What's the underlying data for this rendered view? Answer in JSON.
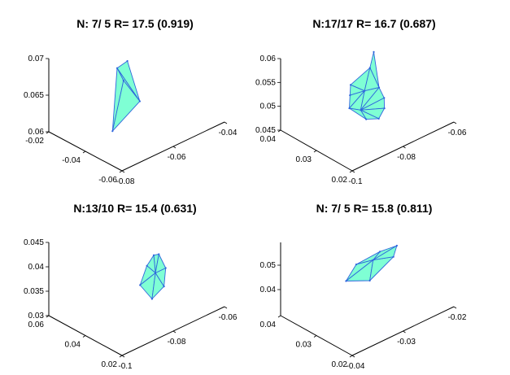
{
  "chart_data": [
    {
      "type": "surface3d",
      "title": "N: 7/ 5 R= 17.5 (0.919)",
      "x_ticks": [
        "-0.04",
        "-0.06",
        "-0.08"
      ],
      "y_ticks": [
        "-0.02",
        "-0.04",
        "-0.06"
      ],
      "z_ticks": [
        "0.07",
        "0.065",
        "0.06"
      ],
      "xlim": [
        -0.09,
        -0.03
      ],
      "ylim": [
        -0.07,
        -0.02
      ],
      "zlim": [
        0.06,
        0.07
      ],
      "vertices": [
        [
          -0.058,
          -0.041,
          0.0688
        ],
        [
          -0.052,
          -0.041,
          0.0685
        ],
        [
          -0.061,
          -0.046,
          0.0635
        ],
        [
          -0.045,
          -0.046,
          0.0612
        ],
        [
          -0.054,
          -0.043,
          0.0668
        ]
      ],
      "faces": [
        [
          0,
          1,
          2
        ],
        [
          1,
          4,
          2
        ],
        [
          2,
          4,
          3
        ],
        [
          1,
          3,
          4
        ]
      ],
      "color": "#7fffd4",
      "edge_color": "#2f66dd"
    },
    {
      "type": "surface3d",
      "title": "N:17/17 R= 16.7 (0.687)",
      "x_ticks": [
        "-0.06",
        "-0.08",
        "-0.1"
      ],
      "y_ticks": [
        "0.04",
        "0.03",
        "0.02"
      ],
      "z_ticks": [
        "0.06",
        "0.055",
        "0.05",
        "0.045"
      ],
      "xlim": [
        -0.11,
        -0.05
      ],
      "ylim": [
        0.02,
        0.04
      ],
      "zlim": [
        0.045,
        0.06
      ],
      "vertices": [
        [
          -0.087,
          0.0315,
          0.0587
        ],
        [
          -0.082,
          0.0302,
          0.0568
        ],
        [
          -0.071,
          0.0304,
          0.055
        ],
        [
          -0.069,
          0.0296,
          0.0535
        ],
        [
          -0.069,
          0.0298,
          0.0507
        ],
        [
          -0.076,
          0.0284,
          0.0478
        ],
        [
          -0.083,
          0.0282,
          0.0468
        ],
        [
          -0.088,
          0.029,
          0.0478
        ],
        [
          -0.09,
          0.03,
          0.0492
        ],
        [
          -0.088,
          0.0305,
          0.0515
        ],
        [
          -0.078,
          0.0298,
          0.0528
        ],
        [
          -0.074,
          0.029,
          0.0498
        ]
      ],
      "faces": [
        [
          0,
          1,
          9
        ],
        [
          1,
          2,
          10
        ],
        [
          1,
          10,
          9
        ],
        [
          2,
          3,
          10
        ],
        [
          3,
          4,
          10
        ],
        [
          10,
          4,
          11
        ],
        [
          9,
          10,
          11
        ],
        [
          9,
          11,
          8
        ],
        [
          8,
          11,
          7
        ],
        [
          7,
          11,
          6
        ],
        [
          6,
          11,
          5
        ],
        [
          5,
          11,
          4
        ]
      ],
      "color": "#7fffd4",
      "edge_color": "#2f66dd"
    },
    {
      "type": "surface3d",
      "title": "N:13/10 R= 15.4 (0.631)",
      "x_ticks": [
        "-0.06",
        "-0.08",
        "-0.1"
      ],
      "y_ticks": [
        "0.06",
        "0.04",
        "0.02"
      ],
      "z_ticks": [
        "0.045",
        "0.04",
        "0.035",
        "0.03"
      ],
      "xlim": [
        -0.11,
        -0.05
      ],
      "ylim": [
        0.02,
        0.06
      ],
      "zlim": [
        0.03,
        0.045
      ],
      "vertices": [
        [
          -0.093,
          0.04,
          0.0395
        ],
        [
          -0.09,
          0.04,
          0.0398
        ],
        [
          -0.086,
          0.04,
          0.0383
        ],
        [
          -0.082,
          0.04,
          0.035
        ],
        [
          -0.089,
          0.04,
          0.031
        ],
        [
          -0.096,
          0.04,
          0.0324
        ],
        [
          -0.097,
          0.04,
          0.036
        ],
        [
          -0.091,
          0.04,
          0.036
        ]
      ],
      "faces": [
        [
          0,
          1,
          7
        ],
        [
          1,
          2,
          7
        ],
        [
          2,
          3,
          7
        ],
        [
          7,
          3,
          4
        ],
        [
          7,
          4,
          5
        ],
        [
          7,
          5,
          6
        ],
        [
          7,
          6,
          0
        ]
      ],
      "color": "#7fffd4",
      "edge_color": "#2f66dd"
    },
    {
      "type": "surface3d",
      "title": "N: 7/ 5 R= 15.8 (0.811)",
      "x_ticks": [
        "-0.02",
        "-0.03",
        "-0.04"
      ],
      "y_ticks": [
        "0.04",
        "0.03",
        "0.02"
      ],
      "z_ticks": [
        "0.05",
        "0.04"
      ],
      "xlim": [
        -0.045,
        -0.015
      ],
      "ylim": [
        0.02,
        0.045
      ],
      "zlim": [
        0.035,
        0.055
      ],
      "vertices": [
        [
          -0.04,
          0.034,
          0.0478
        ],
        [
          -0.035,
          0.034,
          0.0484
        ],
        [
          -0.028,
          0.034,
          0.048
        ],
        [
          -0.025,
          0.034,
          0.0448
        ],
        [
          -0.032,
          0.034,
          0.0418
        ],
        [
          -0.039,
          0.034,
          0.0452
        ],
        [
          -0.033,
          0.034,
          0.047
        ]
      ],
      "faces": [
        [
          0,
          1,
          6
        ],
        [
          1,
          2,
          6
        ],
        [
          2,
          3,
          6
        ],
        [
          6,
          3,
          4
        ],
        [
          6,
          4,
          5
        ],
        [
          6,
          5,
          0
        ]
      ],
      "color": "#7fffd4",
      "edge_color": "#2f66dd"
    }
  ]
}
